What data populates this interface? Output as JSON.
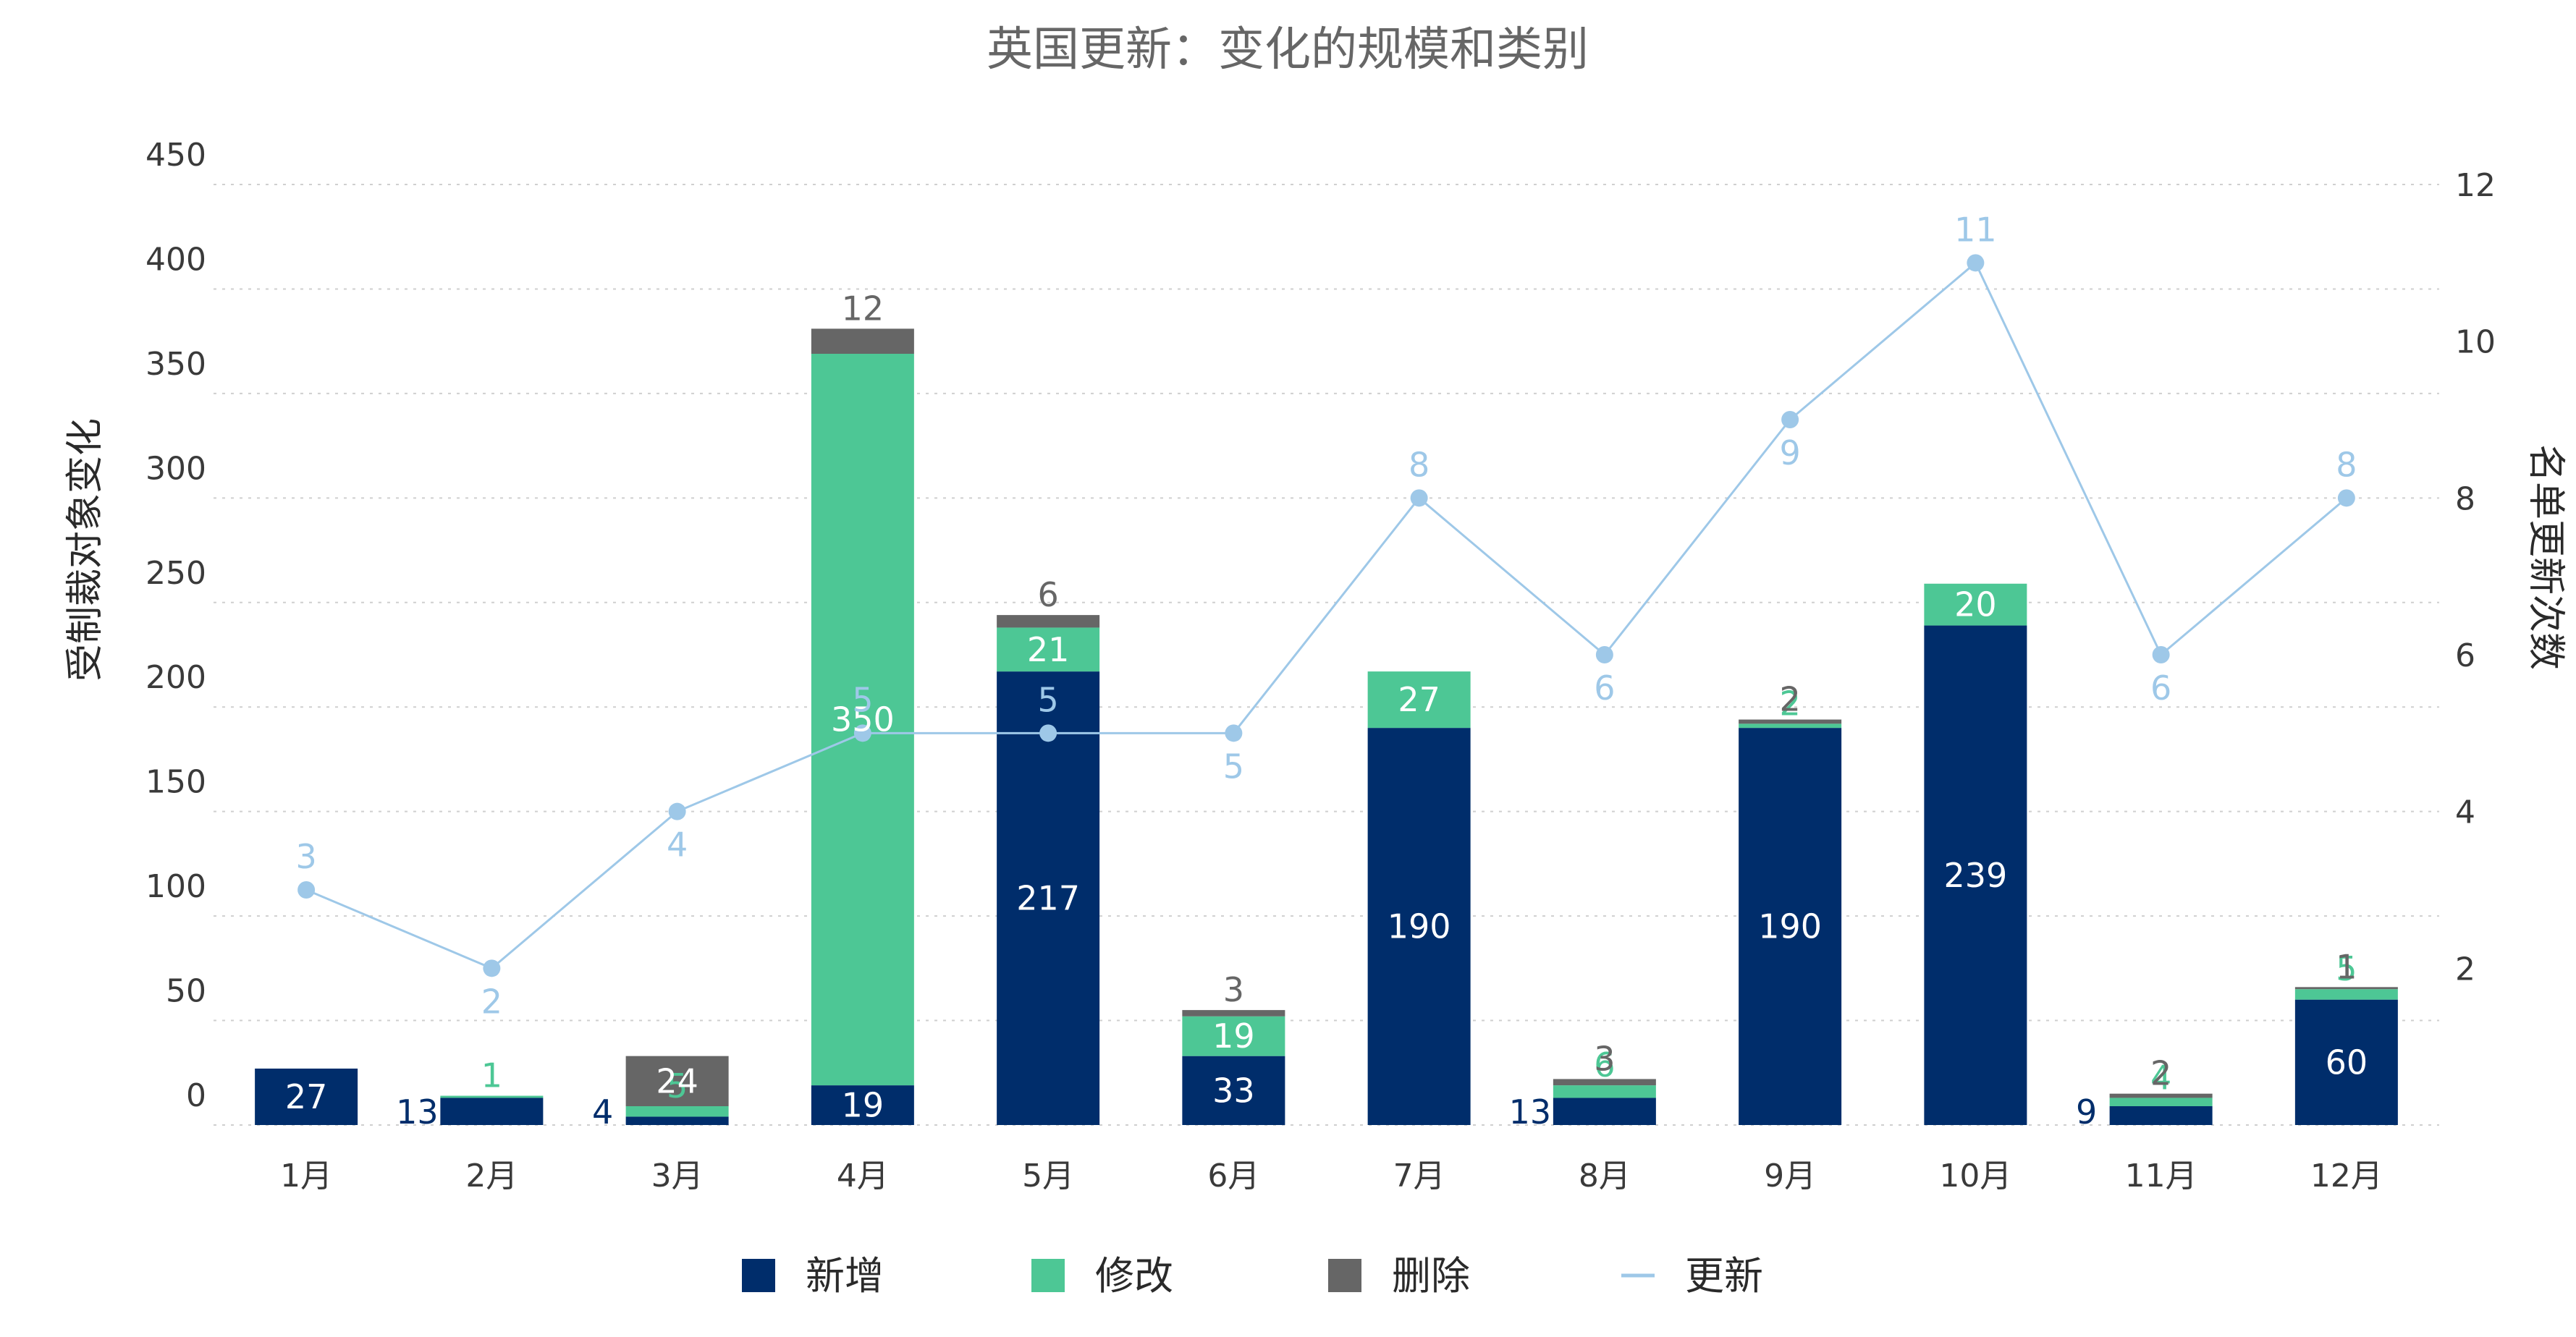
{
  "chart_data": {
    "type": "bar",
    "title": "英国更新：变化的规模和类别",
    "ylabel_left": "受制裁对象变化",
    "ylabel_right": "名单更新次数",
    "categories": [
      "1月",
      "2月",
      "3月",
      "4月",
      "5月",
      "6月",
      "7月",
      "8月",
      "9月",
      "10月",
      "11月",
      "12月"
    ],
    "ylim_left": [
      0,
      450
    ],
    "yticks_left": [
      "0",
      "50",
      "100",
      "150",
      "200",
      "250",
      "300",
      "350",
      "400",
      "450"
    ],
    "ylim_right": [
      0,
      12
    ],
    "yticks_right": [
      "2",
      "4",
      "6",
      "8",
      "10",
      "12"
    ],
    "stacked": true,
    "series": [
      {
        "name": "新增",
        "type": "bar",
        "color": "#002d6b",
        "values": [
          27,
          13,
          4,
          19,
          217,
          33,
          190,
          13,
          190,
          239,
          9,
          60
        ]
      },
      {
        "name": "修改",
        "type": "bar",
        "color": "#4dc795",
        "values": [
          0,
          1,
          5,
          350,
          21,
          19,
          27,
          6,
          2,
          20,
          4,
          5
        ]
      },
      {
        "name": "删除",
        "type": "bar",
        "color": "#666666",
        "values": [
          0,
          0,
          24,
          12,
          6,
          3,
          0,
          3,
          2,
          0,
          2,
          1
        ]
      },
      {
        "name": "更新",
        "type": "line",
        "axis": "right",
        "color": "#9ec8e8",
        "values": [
          3,
          2,
          4,
          5,
          5,
          5,
          8,
          6,
          9,
          11,
          6,
          8
        ]
      }
    ],
    "grid": true,
    "legend_position": "bottom"
  }
}
